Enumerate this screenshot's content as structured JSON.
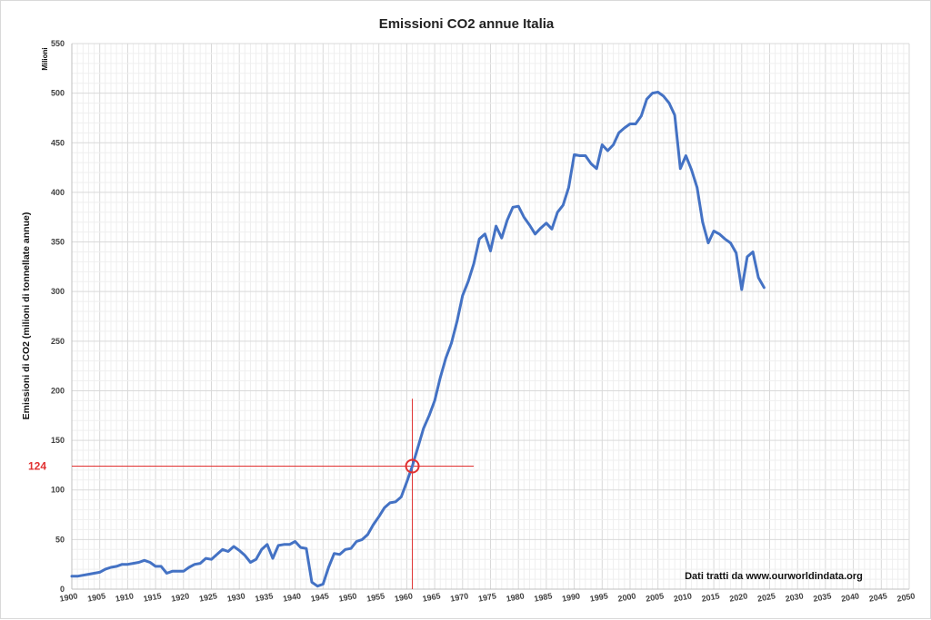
{
  "chart_data": {
    "type": "line",
    "title": "Emissioni CO2 annue Italia",
    "ylabel": "Emissioni di CO2 (milioni di tonnellate annue)",
    "yunit": "Milioni",
    "xlabel": "",
    "xlim": [
      1900,
      2050
    ],
    "ylim": [
      0,
      550
    ],
    "x_ticks": [
      1900,
      1905,
      1910,
      1915,
      1920,
      1925,
      1930,
      1935,
      1940,
      1945,
      1950,
      1955,
      1960,
      1965,
      1970,
      1975,
      1980,
      1985,
      1990,
      1995,
      2000,
      2005,
      2010,
      2015,
      2020,
      2025,
      2030,
      2035,
      2040,
      2045,
      2050
    ],
    "y_ticks": [
      0,
      50,
      100,
      150,
      200,
      250,
      300,
      350,
      400,
      450,
      500,
      550
    ],
    "grid": true,
    "line_color": "#4472c4",
    "annotation": {
      "x": 1961,
      "y": 124,
      "label": "124",
      "color": "#e03030"
    },
    "source_note": "Dati tratti da www.ourworldindata.org",
    "series": [
      {
        "x": [
          1900,
          1901,
          1902,
          1903,
          1904,
          1905,
          1906,
          1907,
          1908,
          1909,
          1910,
          1911,
          1912,
          1913,
          1914,
          1915,
          1916,
          1917,
          1918,
          1919,
          1920,
          1921,
          1922,
          1923,
          1924,
          1925,
          1926,
          1927,
          1928,
          1929,
          1930,
          1931,
          1932,
          1933,
          1934,
          1935,
          1936,
          1937,
          1938,
          1939,
          1940,
          1941,
          1942,
          1943,
          1944,
          1945,
          1946,
          1947,
          1948,
          1949,
          1950,
          1951,
          1952,
          1953,
          1954,
          1955,
          1956,
          1957,
          1958,
          1959,
          1960,
          1961,
          1962,
          1963,
          1964,
          1965,
          1966,
          1967,
          1968,
          1969,
          1970,
          1971,
          1972,
          1973,
          1974,
          1975,
          1976,
          1977,
          1978,
          1979,
          1980,
          1981,
          1982,
          1983,
          1984,
          1985,
          1986,
          1987,
          1988,
          1989,
          1990,
          1991,
          1992,
          1993,
          1994,
          1995,
          1996,
          1997,
          1998,
          1999,
          2000,
          2001,
          2002,
          2003,
          2004,
          2005,
          2006,
          2007,
          2008,
          2009,
          2010,
          2011,
          2012,
          2013,
          2014,
          2015,
          2016,
          2017,
          2018,
          2019,
          2020,
          2021,
          2022,
          2023,
          2024
        ],
        "values": [
          13,
          13,
          14,
          15,
          16,
          17,
          20,
          22,
          23,
          25,
          25,
          26,
          27,
          29,
          27,
          23,
          23,
          16,
          18,
          18,
          18,
          22,
          25,
          26,
          31,
          30,
          35,
          40,
          38,
          43,
          39,
          34,
          27,
          30,
          40,
          45,
          31,
          44,
          45,
          45,
          48,
          42,
          41,
          7,
          3,
          5,
          22,
          36,
          35,
          40,
          41,
          48,
          50,
          55,
          65,
          73,
          82,
          87,
          88,
          93,
          108,
          124,
          143,
          162,
          175,
          190,
          213,
          233,
          248,
          270,
          296,
          310,
          328,
          353,
          358,
          341,
          366,
          354,
          372,
          385,
          386,
          375,
          367,
          358,
          364,
          369,
          363,
          380,
          387,
          405,
          438,
          437,
          437,
          429,
          424,
          448,
          442,
          448,
          460,
          465,
          469,
          469,
          477,
          494,
          500,
          501,
          497,
          490,
          478,
          424,
          437,
          423,
          405,
          370,
          349,
          361,
          358,
          353,
          349,
          339,
          302,
          335,
          340,
          314,
          304
        ]
      }
    ]
  }
}
